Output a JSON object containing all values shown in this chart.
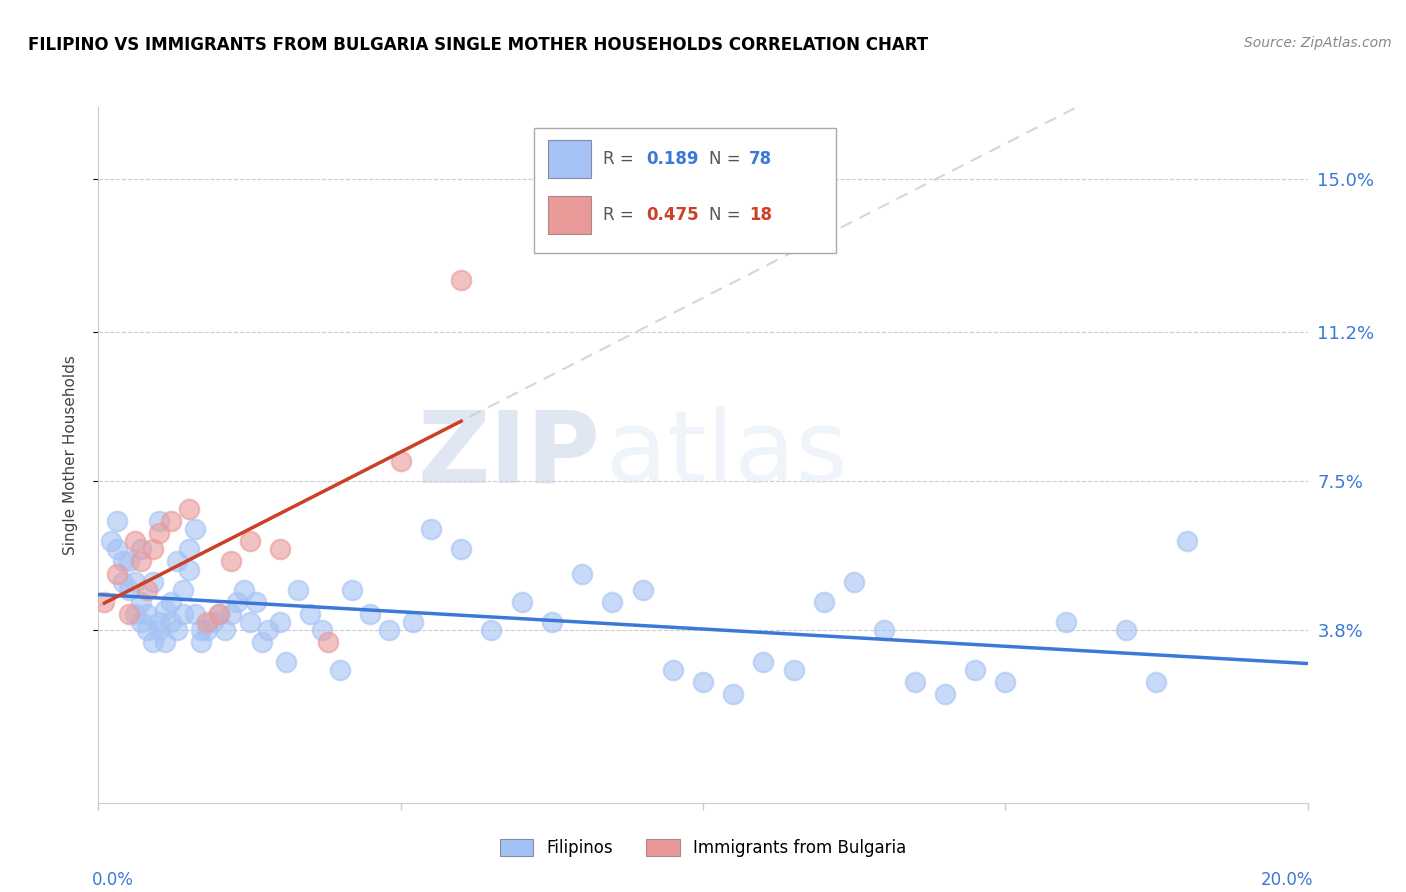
{
  "title": "FILIPINO VS IMMIGRANTS FROM BULGARIA SINGLE MOTHER HOUSEHOLDS CORRELATION CHART",
  "source": "Source: ZipAtlas.com",
  "ylabel": "Single Mother Households",
  "ytick_labels": [
    "3.8%",
    "7.5%",
    "11.2%",
    "15.0%"
  ],
  "ytick_values": [
    0.038,
    0.075,
    0.112,
    0.15
  ],
  "xlim": [
    0.0,
    0.2
  ],
  "ylim": [
    -0.005,
    0.168
  ],
  "r_filipino": 0.189,
  "n_filipino": 78,
  "r_bulgaria": 0.475,
  "n_bulgaria": 18,
  "blue_scatter_color": "#a4c2f4",
  "pink_scatter_color": "#ea9999",
  "blue_line_color": "#3c78d8",
  "pink_line_color": "#cc4125",
  "pink_dash_color": "#ccaaaa",
  "background_color": "#ffffff",
  "filipino_x": [
    0.002,
    0.003,
    0.003,
    0.004,
    0.004,
    0.005,
    0.005,
    0.006,
    0.006,
    0.007,
    0.007,
    0.007,
    0.008,
    0.008,
    0.009,
    0.009,
    0.01,
    0.01,
    0.01,
    0.011,
    0.011,
    0.012,
    0.012,
    0.013,
    0.013,
    0.014,
    0.014,
    0.015,
    0.015,
    0.016,
    0.016,
    0.017,
    0.017,
    0.018,
    0.019,
    0.02,
    0.021,
    0.022,
    0.023,
    0.024,
    0.025,
    0.026,
    0.027,
    0.028,
    0.03,
    0.031,
    0.033,
    0.035,
    0.037,
    0.04,
    0.042,
    0.045,
    0.048,
    0.052,
    0.055,
    0.06,
    0.065,
    0.07,
    0.075,
    0.08,
    0.085,
    0.09,
    0.095,
    0.1,
    0.105,
    0.11,
    0.115,
    0.12,
    0.125,
    0.13,
    0.135,
    0.14,
    0.145,
    0.15,
    0.16,
    0.17,
    0.175,
    0.18
  ],
  "filipino_y": [
    0.06,
    0.058,
    0.065,
    0.055,
    0.05,
    0.048,
    0.055,
    0.042,
    0.05,
    0.04,
    0.045,
    0.058,
    0.038,
    0.042,
    0.05,
    0.035,
    0.04,
    0.038,
    0.065,
    0.043,
    0.035,
    0.04,
    0.045,
    0.055,
    0.038,
    0.042,
    0.048,
    0.053,
    0.058,
    0.063,
    0.042,
    0.038,
    0.035,
    0.038,
    0.04,
    0.042,
    0.038,
    0.042,
    0.045,
    0.048,
    0.04,
    0.045,
    0.035,
    0.038,
    0.04,
    0.03,
    0.048,
    0.042,
    0.038,
    0.028,
    0.048,
    0.042,
    0.038,
    0.04,
    0.063,
    0.058,
    0.038,
    0.045,
    0.04,
    0.052,
    0.045,
    0.048,
    0.028,
    0.025,
    0.022,
    0.03,
    0.028,
    0.045,
    0.05,
    0.038,
    0.025,
    0.022,
    0.028,
    0.025,
    0.04,
    0.038,
    0.025,
    0.06
  ],
  "bulgaria_x": [
    0.001,
    0.003,
    0.005,
    0.006,
    0.007,
    0.008,
    0.009,
    0.01,
    0.012,
    0.015,
    0.018,
    0.02,
    0.022,
    0.025,
    0.03,
    0.038,
    0.05,
    0.06
  ],
  "bulgaria_y": [
    0.045,
    0.052,
    0.042,
    0.06,
    0.055,
    0.048,
    0.058,
    0.062,
    0.065,
    0.068,
    0.04,
    0.042,
    0.055,
    0.06,
    0.058,
    0.035,
    0.08,
    0.125
  ]
}
